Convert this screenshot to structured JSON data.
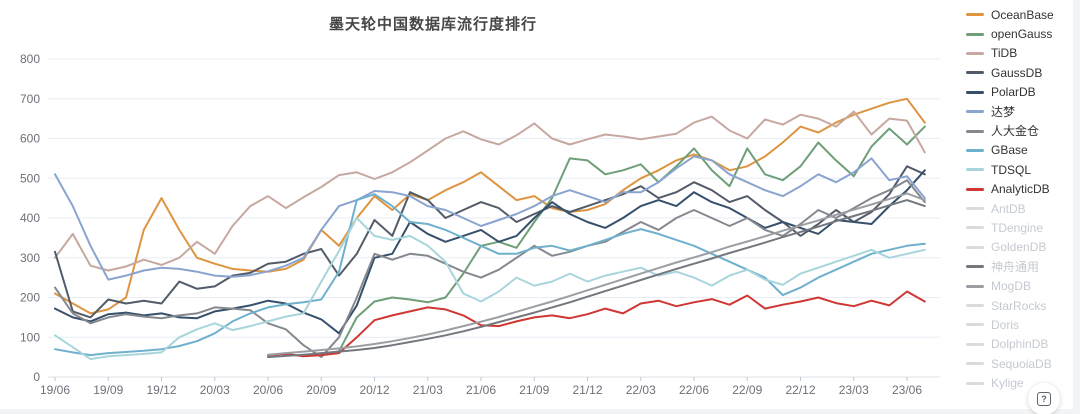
{
  "title": "墨天轮中国数据库流行度排行",
  "help_button": {
    "glyph": "?"
  },
  "axis": {
    "y_ticks": [
      0,
      100,
      200,
      300,
      400,
      500,
      600,
      700,
      800
    ],
    "x_tick_labels": [
      "19/06",
      "19/09",
      "19/12",
      "20/03",
      "20/06",
      "20/09",
      "20/12",
      "21/03",
      "21/06",
      "21/09",
      "21/12",
      "22/03",
      "22/06",
      "22/09",
      "22/12",
      "23/03",
      "23/06"
    ]
  },
  "chart_data": {
    "type": "line",
    "title": "墨天轮中国数据库流行度排行",
    "xlabel": "",
    "ylabel": "",
    "ylim": [
      0,
      800
    ],
    "grid": true,
    "legend_position": "right",
    "x": [
      "19/06",
      "19/07",
      "19/08",
      "19/09",
      "19/10",
      "19/11",
      "19/12",
      "20/01",
      "20/02",
      "20/03",
      "20/04",
      "20/05",
      "20/06",
      "20/07",
      "20/08",
      "20/09",
      "20/10",
      "20/11",
      "20/12",
      "21/01",
      "21/02",
      "21/03",
      "21/04",
      "21/05",
      "21/06",
      "21/07",
      "21/08",
      "21/09",
      "21/10",
      "21/11",
      "21/12",
      "22/01",
      "22/02",
      "22/03",
      "22/04",
      "22/05",
      "22/06",
      "22/07",
      "22/08",
      "22/09",
      "22/10",
      "22/11",
      "22/12",
      "23/01",
      "23/02",
      "23/03",
      "23/04",
      "23/05",
      "23/06",
      "23/07"
    ],
    "series": [
      {
        "name": "OceanBase",
        "color": "#DE9440",
        "selected": true,
        "legend_text_color": "#333333",
        "values": [
          210,
          185,
          160,
          170,
          200,
          370,
          450,
          370,
          300,
          285,
          272,
          268,
          265,
          272,
          295,
          370,
          330,
          400,
          455,
          420,
          460,
          445,
          470,
          490,
          515,
          480,
          445,
          455,
          425,
          415,
          420,
          435,
          470,
          500,
          520,
          545,
          560,
          545,
          520,
          530,
          555,
          590,
          630,
          615,
          640,
          660,
          675,
          690,
          700,
          640
        ]
      },
      {
        "name": "openGauss",
        "color": "#6E9F78",
        "selected": true,
        "legend_text_color": "#333333",
        "values": [
          null,
          null,
          null,
          null,
          null,
          null,
          null,
          null,
          null,
          null,
          null,
          null,
          null,
          null,
          null,
          55,
          65,
          150,
          190,
          200,
          195,
          188,
          200,
          260,
          330,
          340,
          325,
          390,
          450,
          550,
          545,
          510,
          520,
          535,
          490,
          530,
          575,
          520,
          480,
          575,
          510,
          495,
          530,
          590,
          545,
          505,
          580,
          625,
          585,
          630
        ]
      },
      {
        "name": "TiDB",
        "color": "#C7A8A1",
        "selected": true,
        "legend_text_color": "#333333",
        "values": [
          300,
          360,
          280,
          268,
          278,
          295,
          282,
          300,
          340,
          310,
          380,
          430,
          455,
          425,
          452,
          478,
          508,
          515,
          498,
          515,
          540,
          570,
          600,
          618,
          598,
          585,
          608,
          638,
          600,
          585,
          598,
          610,
          605,
          598,
          605,
          612,
          640,
          655,
          620,
          600,
          648,
          635,
          660,
          650,
          630,
          668,
          610,
          650,
          645,
          565
        ]
      },
      {
        "name": "GaussDB",
        "color": "#525C68",
        "selected": true,
        "legend_text_color": "#333333",
        "values": [
          315,
          165,
          150,
          195,
          185,
          192,
          185,
          240,
          222,
          228,
          255,
          262,
          285,
          290,
          310,
          322,
          255,
          310,
          395,
          355,
          465,
          445,
          400,
          420,
          440,
          425,
          390,
          410,
          430,
          415,
          430,
          445,
          460,
          480,
          450,
          465,
          490,
          470,
          440,
          455,
          420,
          390,
          355,
          385,
          420,
          390,
          415,
          460,
          530,
          510
        ]
      },
      {
        "name": "PolarDB",
        "color": "#36506C",
        "selected": true,
        "legend_text_color": "#333333",
        "values": [
          172,
          150,
          140,
          158,
          162,
          155,
          160,
          150,
          148,
          165,
          172,
          180,
          192,
          185,
          162,
          145,
          110,
          180,
          300,
          310,
          390,
          360,
          340,
          355,
          370,
          340,
          355,
          400,
          440,
          410,
          390,
          375,
          400,
          430,
          445,
          430,
          465,
          440,
          425,
          400,
          375,
          390,
          375,
          360,
          395,
          390,
          385,
          430,
          470,
          520
        ]
      },
      {
        "name": "达梦",
        "color": "#8AA4D0",
        "selected": true,
        "legend_text_color": "#333333",
        "values": [
          510,
          430,
          330,
          245,
          255,
          268,
          275,
          272,
          265,
          255,
          252,
          256,
          266,
          280,
          300,
          370,
          430,
          445,
          468,
          465,
          455,
          430,
          420,
          400,
          380,
          395,
          410,
          430,
          455,
          470,
          455,
          440,
          465,
          465,
          490,
          525,
          555,
          545,
          510,
          490,
          470,
          455,
          480,
          510,
          490,
          515,
          550,
          495,
          505,
          450
        ]
      },
      {
        "name": "人大金仓",
        "color": "#85898F",
        "selected": true,
        "legend_text_color": "#333333",
        "values": [
          225,
          160,
          135,
          150,
          158,
          152,
          148,
          155,
          160,
          175,
          172,
          168,
          135,
          120,
          80,
          50,
          100,
          200,
          310,
          295,
          310,
          305,
          285,
          265,
          250,
          270,
          300,
          330,
          305,
          315,
          330,
          340,
          365,
          390,
          370,
          400,
          420,
          400,
          380,
          400,
          370,
          355,
          385,
          420,
          400,
          425,
          450,
          470,
          495,
          440
        ]
      },
      {
        "name": "GBase",
        "color": "#6FB0CD",
        "selected": true,
        "legend_text_color": "#333333",
        "values": [
          70,
          62,
          55,
          60,
          63,
          66,
          70,
          78,
          90,
          110,
          140,
          160,
          175,
          183,
          188,
          195,
          265,
          445,
          460,
          430,
          390,
          385,
          370,
          350,
          330,
          310,
          310,
          325,
          330,
          318,
          330,
          345,
          360,
          372,
          360,
          345,
          330,
          310,
          290,
          270,
          250,
          206,
          225,
          250,
          270,
          290,
          310,
          320,
          330,
          335
        ]
      },
      {
        "name": "TDSQL",
        "color": "#A8D5DC",
        "selected": true,
        "legend_text_color": "#333333",
        "values": [
          105,
          75,
          45,
          52,
          55,
          58,
          62,
          100,
          120,
          135,
          118,
          128,
          140,
          152,
          160,
          240,
          317,
          400,
          355,
          345,
          355,
          330,
          290,
          210,
          190,
          215,
          250,
          230,
          240,
          260,
          240,
          255,
          265,
          275,
          255,
          265,
          250,
          230,
          255,
          270,
          245,
          232,
          260,
          275,
          290,
          305,
          320,
          300,
          310,
          320
        ]
      },
      {
        "name": "AnalyticDB",
        "color": "#CE3733",
        "selected": true,
        "legend_text_color": "#333333",
        "values": [
          null,
          null,
          null,
          null,
          null,
          null,
          null,
          null,
          null,
          null,
          null,
          null,
          55,
          58,
          52,
          55,
          60,
          100,
          143,
          155,
          165,
          175,
          170,
          155,
          130,
          128,
          140,
          150,
          155,
          148,
          158,
          172,
          160,
          185,
          192,
          178,
          188,
          196,
          182,
          205,
          172,
          182,
          190,
          200,
          186,
          178,
          192,
          180,
          215,
          190
        ]
      },
      {
        "name": "AntDB",
        "color": "#D8DBDF",
        "selected": false,
        "legend_text_color": "#C5CAD1",
        "values": []
      },
      {
        "name": "TDengine",
        "color": "#D8DBDF",
        "selected": false,
        "legend_text_color": "#C5CAD1",
        "values": []
      },
      {
        "name": "GoldenDB",
        "color": "#D8DBDF",
        "selected": false,
        "legend_text_color": "#C5CAD1",
        "values": []
      },
      {
        "name": "神舟通用",
        "color": "#74777E",
        "selected": true,
        "legend_text_color": "#C5CAD1",
        "values": [
          null,
          null,
          null,
          null,
          null,
          null,
          null,
          null,
          null,
          null,
          null,
          null,
          50,
          53,
          56,
          60,
          64,
          68,
          73,
          80,
          88,
          96,
          105,
          115,
          126,
          138,
          150,
          162,
          175,
          188,
          202,
          216,
          230,
          244,
          258,
          272,
          285,
          298,
          312,
          325,
          338,
          352,
          365,
          378,
          392,
          405,
          418,
          432,
          445,
          430
        ]
      },
      {
        "name": "MogDB",
        "color": "#9B9EA3",
        "selected": true,
        "legend_text_color": "#C5CAD1",
        "values": [
          null,
          null,
          null,
          null,
          null,
          null,
          null,
          null,
          null,
          null,
          null,
          null,
          56,
          60,
          64,
          68,
          72,
          77,
          83,
          90,
          98,
          107,
          117,
          128,
          139,
          151,
          164,
          177,
          190,
          204,
          218,
          232,
          246,
          260,
          274,
          288,
          301,
          314,
          328,
          341,
          354,
          368,
          381,
          394,
          408,
          421,
          434,
          448,
          462,
          445
        ]
      },
      {
        "name": "StarRocks",
        "color": "#D8DBDF",
        "selected": false,
        "legend_text_color": "#C5CAD1",
        "values": []
      },
      {
        "name": "Doris",
        "color": "#D8DBDF",
        "selected": false,
        "legend_text_color": "#C5CAD1",
        "values": []
      },
      {
        "name": "DolphinDB",
        "color": "#D8DBDF",
        "selected": false,
        "legend_text_color": "#C5CAD1",
        "values": []
      },
      {
        "name": "SequoiaDB",
        "color": "#D8DBDF",
        "selected": false,
        "legend_text_color": "#C5CAD1",
        "values": []
      },
      {
        "name": "Kylige",
        "color": "#D8DBDF",
        "selected": false,
        "legend_text_color": "#C5CAD1",
        "values": []
      }
    ]
  },
  "style": {
    "grid_color": "#E8EEF5",
    "axis_line_color": "#DDE3EA",
    "tick_color": "#C0C6CF",
    "axis_label_color": "#6E7079",
    "title_color": "#464646"
  }
}
